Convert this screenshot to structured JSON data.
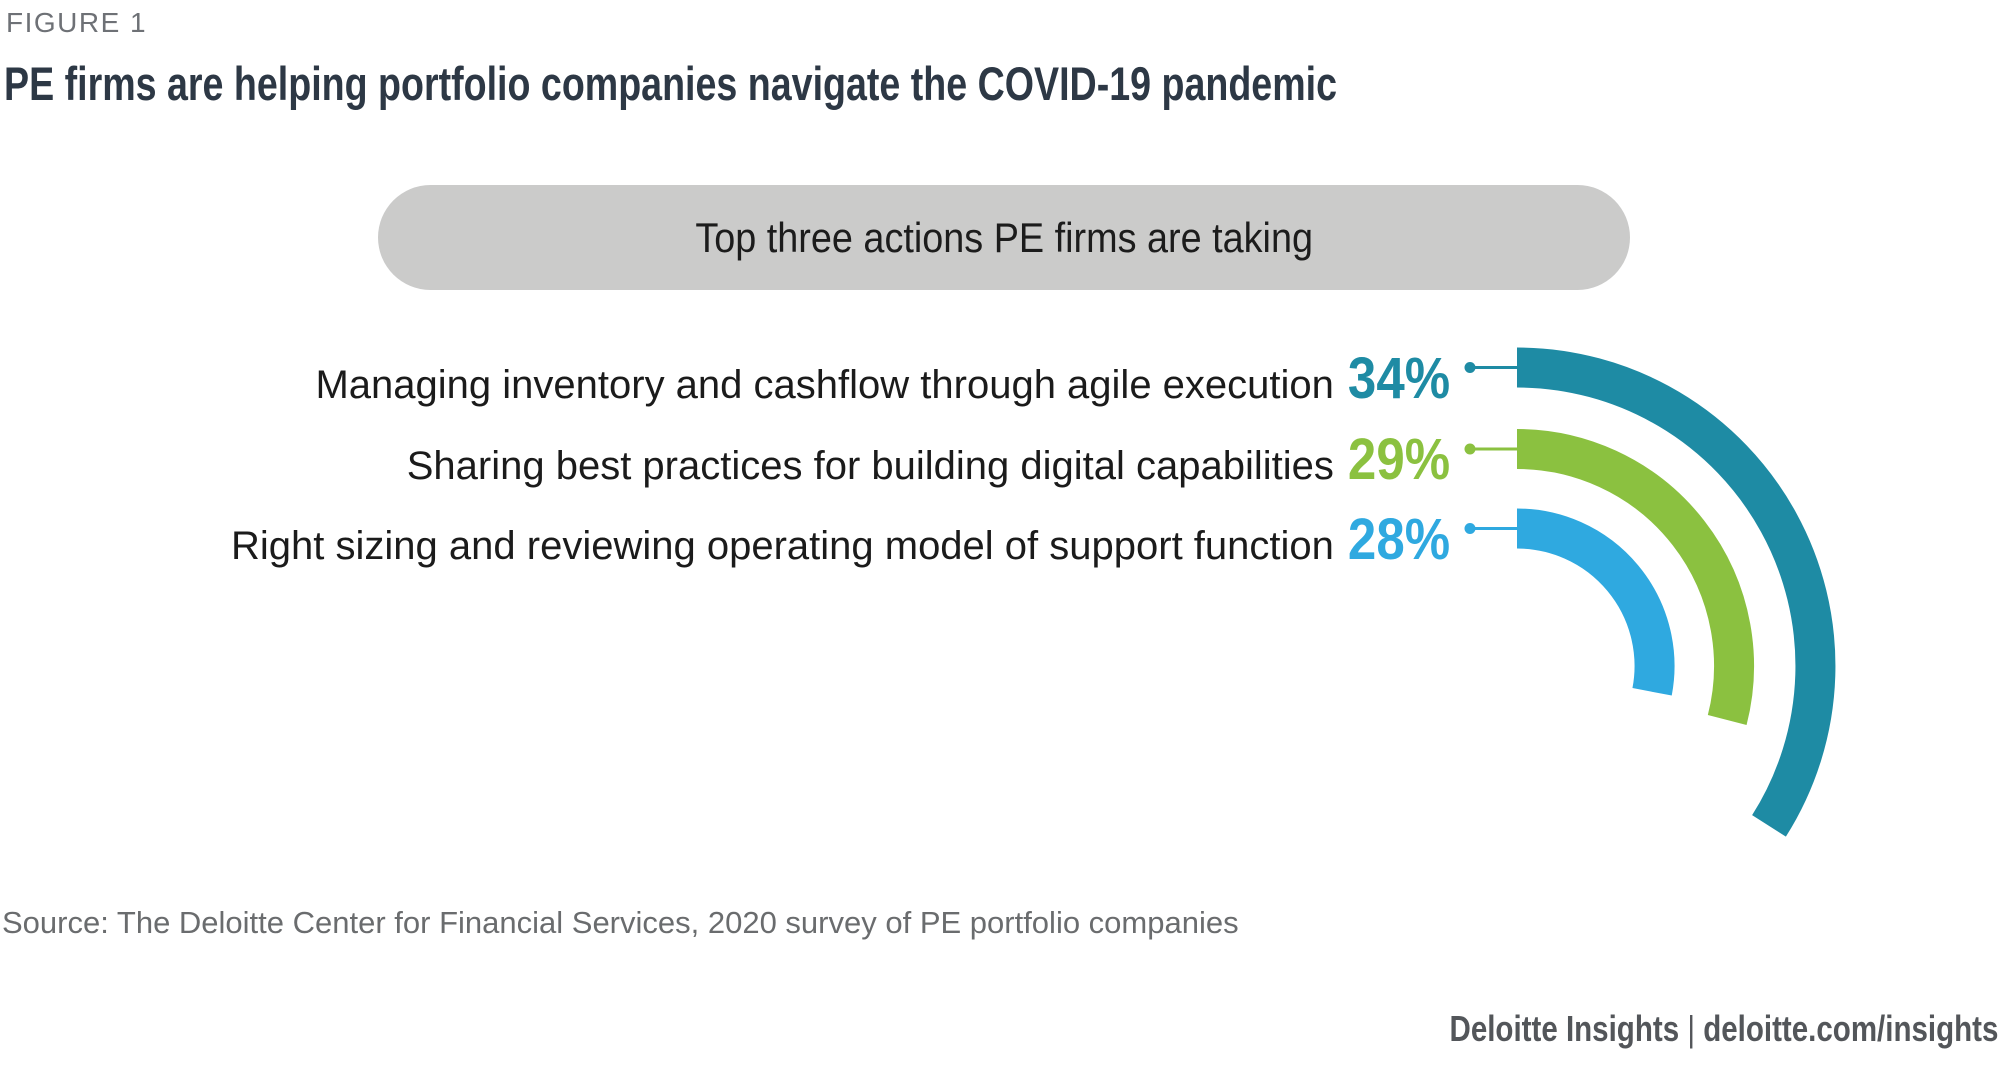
{
  "figure_label": "FIGURE 1",
  "title": "PE firms are helping portfolio companies navigate the COVID-19 pandemic",
  "banner": {
    "label": "Top three actions PE firms are taking",
    "bg_color": "#cbcbca"
  },
  "chart_data": {
    "type": "bar",
    "variant": "radial-arc",
    "unit": "%",
    "categories": [
      "Managing inventory and cashflow through agile execution",
      "Sharing best practices for building digital capabilities",
      "Right sizing and reviewing operating model of support function"
    ],
    "values": [
      34,
      29,
      28
    ],
    "value_labels": [
      "34%",
      "29%",
      "28%"
    ],
    "colors": [
      "#1e8ba4",
      "#8bc140",
      "#2fa9e0"
    ],
    "legend_position": "left-of-arcs",
    "axis": "none"
  },
  "source": "Source: The Deloitte Center for Financial Services, 2020 survey of PE portfolio companies",
  "footer": {
    "brand": "Deloitte Insights",
    "separator": "|",
    "url": "deloitte.com/insights"
  }
}
